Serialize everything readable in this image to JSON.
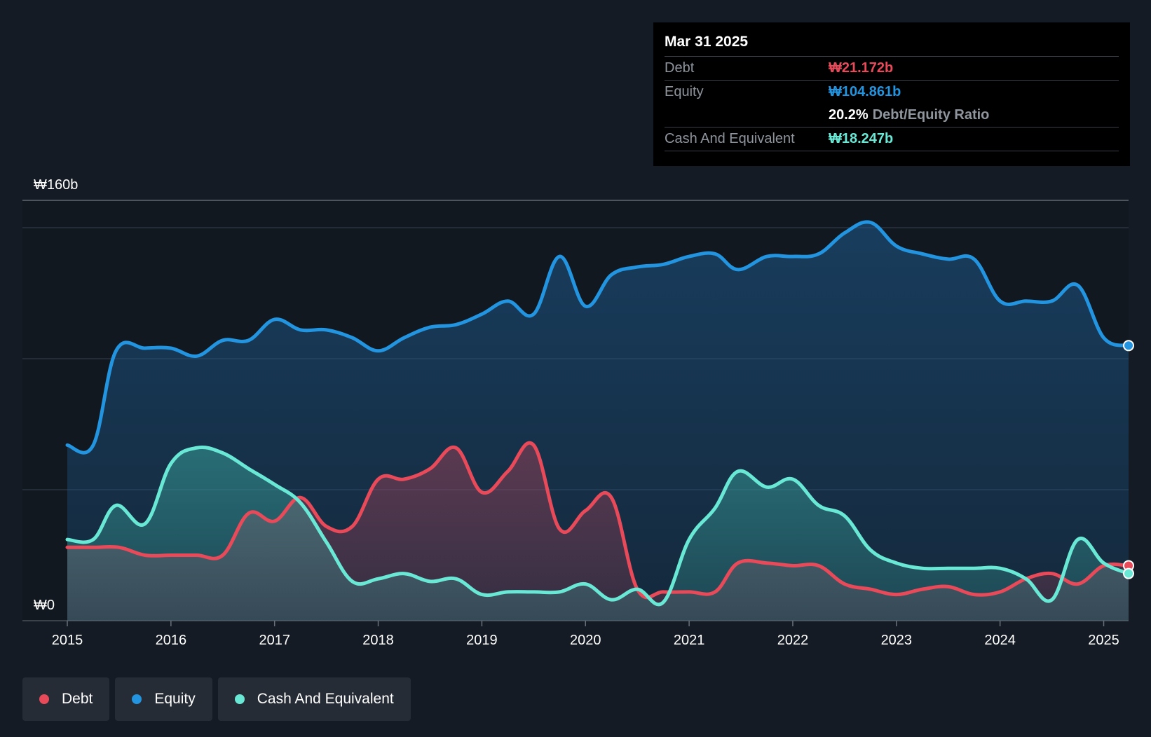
{
  "tooltip": {
    "date": "Mar 31 2025",
    "debt_label": "Debt",
    "debt_value": "₩21.172b",
    "equity_label": "Equity",
    "equity_value": "₩104.861b",
    "ratio_value": "20.2%",
    "ratio_label": "Debt/Equity Ratio",
    "cash_label": "Cash And Equivalent",
    "cash_value": "₩18.247b"
  },
  "legend": [
    {
      "label": "Debt",
      "color": "#e84a5a"
    },
    {
      "label": "Equity",
      "color": "#2394df"
    },
    {
      "label": "Cash And Equivalent",
      "color": "#6ae8d6"
    }
  ],
  "colors": {
    "debt": "#e84a5a",
    "equity": "#2394df",
    "cash": "#6ae8d6",
    "background": "#151b24"
  },
  "chart_data": {
    "type": "area",
    "ylim": [
      0,
      160
    ],
    "y_top_label": "₩160b",
    "y_bottom_label": "₩0",
    "x_ticks": [
      2015,
      2016,
      2017,
      2018,
      2019,
      2020,
      2021,
      2022,
      2023,
      2024,
      2025
    ],
    "x_tick_labels": [
      "2015",
      "2016",
      "2017",
      "2018",
      "2019",
      "2020",
      "2021",
      "2022",
      "2023",
      "2024",
      "2025"
    ],
    "x_range": [
      2015,
      2025.24
    ],
    "series": [
      {
        "name": "Equity",
        "x": [
          2015,
          2015.25,
          2015.47,
          2015.75,
          2016,
          2016.25,
          2016.5,
          2016.75,
          2017,
          2017.25,
          2017.5,
          2017.75,
          2018,
          2018.25,
          2018.5,
          2018.75,
          2019,
          2019.25,
          2019.5,
          2019.75,
          2020,
          2020.25,
          2020.5,
          2020.75,
          2021,
          2021.25,
          2021.47,
          2021.75,
          2022,
          2022.25,
          2022.5,
          2022.75,
          2023,
          2023.25,
          2023.5,
          2023.75,
          2024,
          2024.25,
          2024.5,
          2024.75,
          2025,
          2025.24
        ],
        "values": [
          67,
          67,
          103,
          104,
          104,
          101,
          107,
          107,
          115,
          111,
          111,
          108,
          103,
          108,
          112,
          113,
          117,
          122,
          117,
          139,
          120,
          132,
          135,
          136,
          139,
          140,
          134,
          139,
          139,
          140,
          148,
          152,
          143,
          140,
          138,
          138,
          122,
          122,
          122,
          128,
          108,
          105
        ]
      },
      {
        "name": "Debt",
        "x": [
          2015,
          2015.25,
          2015.5,
          2015.75,
          2016,
          2016.25,
          2016.5,
          2016.75,
          2017,
          2017.25,
          2017.5,
          2017.75,
          2018,
          2018.25,
          2018.5,
          2018.75,
          2019,
          2019.25,
          2019.5,
          2019.75,
          2020,
          2020.25,
          2020.5,
          2020.75,
          2021,
          2021.25,
          2021.47,
          2021.75,
          2022,
          2022.25,
          2022.5,
          2022.75,
          2023,
          2023.25,
          2023.5,
          2023.75,
          2024,
          2024.25,
          2024.5,
          2024.75,
          2025,
          2025.24
        ],
        "values": [
          28,
          28,
          28,
          25,
          25,
          25,
          25,
          41,
          38,
          47,
          36,
          36,
          54,
          54,
          58,
          66,
          49,
          57,
          67,
          35,
          42,
          47,
          12,
          11,
          11,
          11,
          22,
          22,
          21,
          21,
          14,
          12,
          10,
          12,
          13,
          10,
          11,
          16,
          18,
          14,
          21,
          21
        ]
      },
      {
        "name": "Cash And Equivalent",
        "x": [
          2015,
          2015.25,
          2015.47,
          2015.75,
          2016,
          2016.25,
          2016.5,
          2016.75,
          2017,
          2017.25,
          2017.5,
          2017.75,
          2018,
          2018.25,
          2018.5,
          2018.75,
          2019,
          2019.25,
          2019.5,
          2019.75,
          2020,
          2020.25,
          2020.5,
          2020.75,
          2021,
          2021.25,
          2021.47,
          2021.75,
          2022,
          2022.25,
          2022.5,
          2022.75,
          2023,
          2023.25,
          2023.5,
          2023.75,
          2024,
          2024.25,
          2024.5,
          2024.75,
          2025,
          2025.24
        ],
        "values": [
          31,
          31,
          44,
          37,
          60,
          66,
          64,
          58,
          52,
          45,
          30,
          15,
          16,
          18,
          15,
          16,
          10,
          11,
          11,
          11,
          14,
          8,
          12,
          7,
          31,
          43,
          57,
          51,
          54,
          44,
          40,
          27,
          22,
          20,
          20,
          20,
          20,
          16,
          8,
          31,
          22,
          18
        ]
      }
    ]
  }
}
